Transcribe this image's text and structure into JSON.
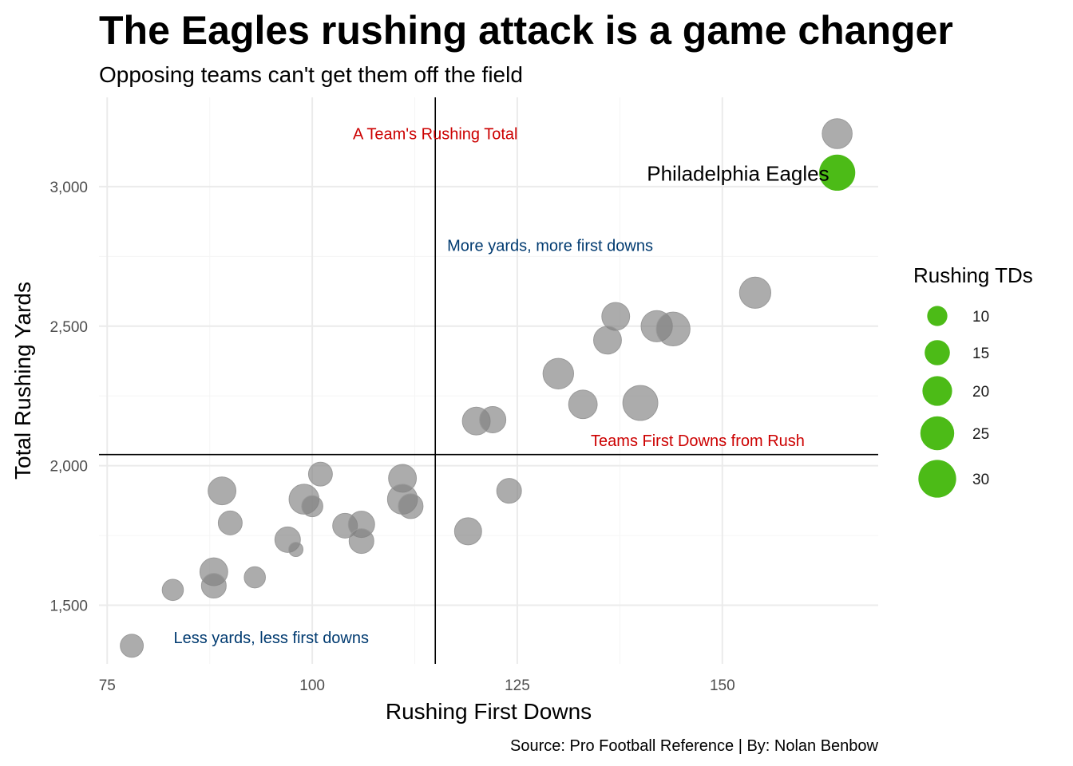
{
  "chart_data": {
    "type": "scatter",
    "title": "The Eagles rushing attack is a game changer",
    "subtitle": "Opposing teams can't get them off the field",
    "xlabel": "Rushing First Downs",
    "ylabel": "Total Rushing Yards",
    "caption": "Source: Pro Football Reference | By: Nolan Benbow",
    "xlim": [
      74,
      169
    ],
    "ylim": [
      1290,
      3320
    ],
    "x_ticks": [
      75,
      100,
      125,
      150
    ],
    "x_tick_labels": [
      "75",
      "100",
      "125",
      "150"
    ],
    "y_ticks": [
      1500,
      2000,
      2500,
      3000
    ],
    "y_tick_labels": [
      "1,500",
      "2,000",
      "2,500",
      "3,000"
    ],
    "grid": true,
    "size_legend": {
      "title": "Rushing TDs",
      "position": "right",
      "color": "#4cbb17",
      "values": [
        10,
        15,
        20,
        25,
        30
      ],
      "labels": [
        "10",
        "15",
        "20",
        "25",
        "30"
      ]
    },
    "reference_lines": {
      "vertical_x": 115,
      "horizontal_y": 2040
    },
    "annotations": [
      {
        "text": "A Team's Rushing Total",
        "x": 115,
        "y": 3190,
        "color": "#cc0000"
      },
      {
        "text": "More yards, more first downs",
        "x": 129,
        "y": 2790,
        "color": "#003a70"
      },
      {
        "text": "Teams First Downs from Rush",
        "x": 147,
        "y": 2090,
        "color": "#cc0000"
      },
      {
        "text": "Less yards, less first downs",
        "x": 95,
        "y": 1385,
        "color": "#003a70"
      }
    ],
    "highlight": {
      "label": "Philadelphia Eagles",
      "x": 164,
      "y": 3050,
      "tds": 32,
      "color": "#4cbb17"
    },
    "point_color": "#808080",
    "series": [
      {
        "name": "",
        "points": [
          {
            "x": 164,
            "y": 3190,
            "tds": 22
          },
          {
            "x": 154,
            "y": 2620,
            "tds": 24
          },
          {
            "x": 137,
            "y": 2535,
            "tds": 19
          },
          {
            "x": 142,
            "y": 2500,
            "tds": 24
          },
          {
            "x": 144,
            "y": 2490,
            "tds": 28
          },
          {
            "x": 136,
            "y": 2450,
            "tds": 19
          },
          {
            "x": 130,
            "y": 2330,
            "tds": 23
          },
          {
            "x": 133,
            "y": 2220,
            "tds": 20
          },
          {
            "x": 140,
            "y": 2225,
            "tds": 30
          },
          {
            "x": 120,
            "y": 2160,
            "tds": 19
          },
          {
            "x": 122,
            "y": 2165,
            "tds": 17
          },
          {
            "x": 124,
            "y": 1910,
            "tds": 15
          },
          {
            "x": 119,
            "y": 1765,
            "tds": 18
          },
          {
            "x": 101,
            "y": 1970,
            "tds": 14
          },
          {
            "x": 111,
            "y": 1955,
            "tds": 19
          },
          {
            "x": 89,
            "y": 1910,
            "tds": 19
          },
          {
            "x": 99,
            "y": 1880,
            "tds": 22
          },
          {
            "x": 100,
            "y": 1855,
            "tds": 11
          },
          {
            "x": 111,
            "y": 1880,
            "tds": 22
          },
          {
            "x": 112,
            "y": 1855,
            "tds": 15
          },
          {
            "x": 90,
            "y": 1795,
            "tds": 14
          },
          {
            "x": 104,
            "y": 1785,
            "tds": 15
          },
          {
            "x": 106,
            "y": 1790,
            "tds": 17
          },
          {
            "x": 106,
            "y": 1730,
            "tds": 15
          },
          {
            "x": 97,
            "y": 1735,
            "tds": 16
          },
          {
            "x": 98,
            "y": 1700,
            "tds": 5
          },
          {
            "x": 88,
            "y": 1620,
            "tds": 19
          },
          {
            "x": 88,
            "y": 1570,
            "tds": 15
          },
          {
            "x": 93,
            "y": 1600,
            "tds": 11
          },
          {
            "x": 83,
            "y": 1555,
            "tds": 11
          },
          {
            "x": 78,
            "y": 1355,
            "tds": 13
          }
        ]
      }
    ]
  }
}
